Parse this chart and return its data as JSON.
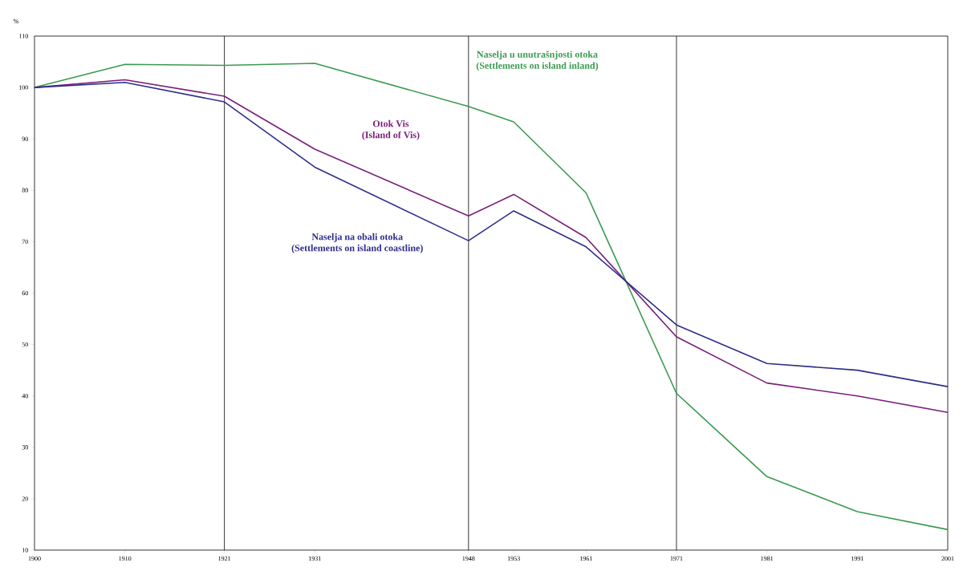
{
  "chart_data": {
    "type": "line",
    "ylabel": "%",
    "x": [
      1900,
      1910,
      1921,
      1931,
      1948,
      1953,
      1961,
      1971,
      1981,
      1991,
      2001
    ],
    "xlim": [
      1900,
      2001
    ],
    "xticks": [
      1900,
      1910,
      1921,
      1931,
      1948,
      1953,
      1961,
      1971,
      1981,
      1991,
      2001
    ],
    "ylim": [
      10,
      110
    ],
    "yticks": [
      10,
      20,
      30,
      40,
      50,
      60,
      70,
      80,
      90,
      100,
      110
    ],
    "grid": false,
    "marker": "none",
    "line_style": "solid",
    "ref_lines": [
      {
        "axis": "x",
        "value": 1921
      },
      {
        "axis": "x",
        "value": 1948
      },
      {
        "axis": "x",
        "value": 1971
      }
    ],
    "series": [
      {
        "name": "Naselja u unutrašnjosti otoka",
        "color": "#3a9a4f",
        "values": [
          100,
          104.5,
          104.3,
          104.7,
          96.3,
          93.3,
          79.5,
          40.5,
          24.3,
          17.5,
          14
        ]
      },
      {
        "name": "Otok Vis",
        "color": "#7a1f7a",
        "values": [
          100,
          101.5,
          98.3,
          88,
          75,
          79.2,
          70.8,
          51.5,
          42.5,
          40,
          36.8
        ]
      },
      {
        "name": "Naselja na obali otoka",
        "color": "#2e2e8a",
        "values": [
          100,
          101,
          97.2,
          84.5,
          70.2,
          76,
          69,
          53.8,
          46.3,
          45,
          41.8
        ]
      }
    ],
    "annotations": [
      "(Settlements on island inland)",
      "(Island of Vis)",
      "(Settlements on island coastline)"
    ]
  }
}
